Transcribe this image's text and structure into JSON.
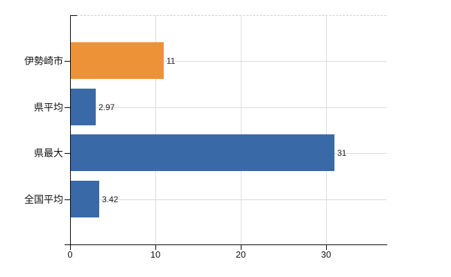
{
  "chart_data": {
    "type": "bar",
    "orientation": "horizontal",
    "title": "",
    "xlabel": "",
    "ylabel": "",
    "categories": [
      "伊勢崎市",
      "県平均",
      "県最大",
      "全国平均"
    ],
    "values": [
      11,
      2.97,
      31,
      3.42
    ],
    "value_labels": [
      "11",
      "2.97",
      "31",
      "3.42"
    ],
    "bar_colors": [
      "#ee9238",
      "#3a69a8",
      "#3a69a8",
      "#3a69a8"
    ],
    "x_ticks": [
      "0",
      "10",
      "20",
      "30"
    ],
    "x_tick_values": [
      0,
      10,
      20,
      30
    ],
    "xlim": [
      0,
      37.1
    ],
    "grid": true,
    "legend": "none",
    "plot_border_top_style": "dashed",
    "background_color": "#ffffff",
    "gridline_color": "#d6dbd4",
    "axis_color": "#000000"
  }
}
